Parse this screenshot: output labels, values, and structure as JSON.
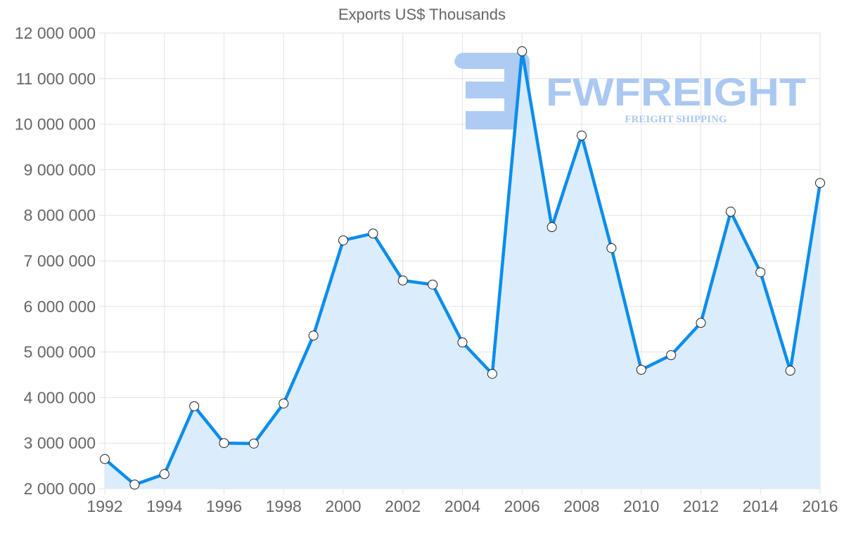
{
  "chart_data": {
    "type": "area",
    "title": "Exports US$ Thousands",
    "xlabel": "",
    "ylabel": "",
    "x": [
      1992,
      1993,
      1994,
      1995,
      1996,
      1997,
      1998,
      1999,
      2000,
      2001,
      2002,
      2003,
      2004,
      2005,
      2006,
      2007,
      2008,
      2009,
      2010,
      2011,
      2012,
      2013,
      2014,
      2015,
      2016
    ],
    "series": [
      {
        "name": "Exports US$ Thousands",
        "values": [
          2650000,
          2090000,
          2320000,
          3810000,
          3000000,
          2990000,
          3870000,
          5360000,
          7450000,
          7600000,
          6570000,
          6480000,
          5210000,
          4520000,
          11600000,
          7740000,
          9750000,
          7280000,
          4610000,
          4930000,
          5640000,
          8080000,
          6750000,
          4590000,
          8710000
        ],
        "line_color": "#0a8ded",
        "fill_color": "#d9ecfc"
      }
    ],
    "ylim": [
      2000000,
      12000000
    ],
    "xlim": [
      1992,
      2016
    ],
    "y_ticks": [
      "12 000 000",
      "11 000 000",
      "10 000 000",
      "9 000 000",
      "8 000 000",
      "7 000 000",
      "6 000 000",
      "5 000 000",
      "4 000 000",
      "3 000 000",
      "2 000 000"
    ],
    "y_tick_values": [
      12000000,
      11000000,
      10000000,
      9000000,
      8000000,
      7000000,
      6000000,
      5000000,
      4000000,
      3000000,
      2000000
    ],
    "x_ticks": [
      "1992",
      "1994",
      "1996",
      "1998",
      "2000",
      "2002",
      "2004",
      "2006",
      "2008",
      "2010",
      "2012",
      "2014",
      "2016"
    ],
    "x_tick_values": [
      1992,
      1994,
      1996,
      1998,
      2000,
      2002,
      2004,
      2006,
      2008,
      2010,
      2012,
      2014,
      2016
    ],
    "grid": true,
    "legend": "none"
  },
  "watermark": {
    "brand": "FWFREIGHT",
    "tagline": "FREIGHT SHIPPING",
    "color": "#aac8f2"
  },
  "colors": {
    "grid": "#e2e2e2",
    "text": "#666666",
    "marker_fill": "#ffffff",
    "marker_stroke": "#222222"
  }
}
